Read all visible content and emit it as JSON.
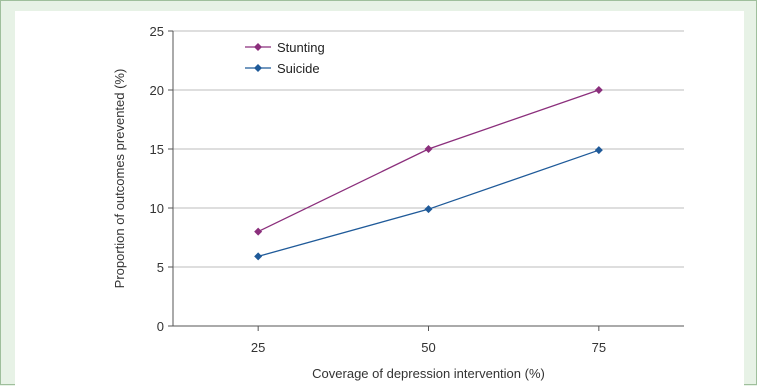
{
  "chart_data": {
    "type": "line",
    "title": "",
    "xlabel": "Coverage of depression intervention (%)",
    "ylabel": "Proportion of outcomes prevented (%)",
    "x": [
      25,
      50,
      75
    ],
    "x_tick_labels": [
      "25",
      "50",
      "75"
    ],
    "xlim": [
      12.5,
      87.5
    ],
    "ylim": [
      0,
      25
    ],
    "y_ticks": [
      0,
      5,
      10,
      15,
      20,
      25
    ],
    "y_tick_labels": [
      "0",
      "5",
      "10",
      "15",
      "20",
      "25"
    ],
    "grid": "horizontal",
    "legend_position": "top-left",
    "series": [
      {
        "name": "Stunting",
        "color": "#8b2f7c",
        "marker": "diamond",
        "values": [
          8,
          15,
          20
        ]
      },
      {
        "name": "Suicide",
        "color": "#1f5a99",
        "marker": "diamond",
        "values": [
          5.9,
          9.9,
          14.9
        ]
      }
    ]
  },
  "colors": {
    "panel_background": "#e7f2e6",
    "plot_background": "#ffffff",
    "grid": "#bdbdbd",
    "axis": "#555555"
  }
}
